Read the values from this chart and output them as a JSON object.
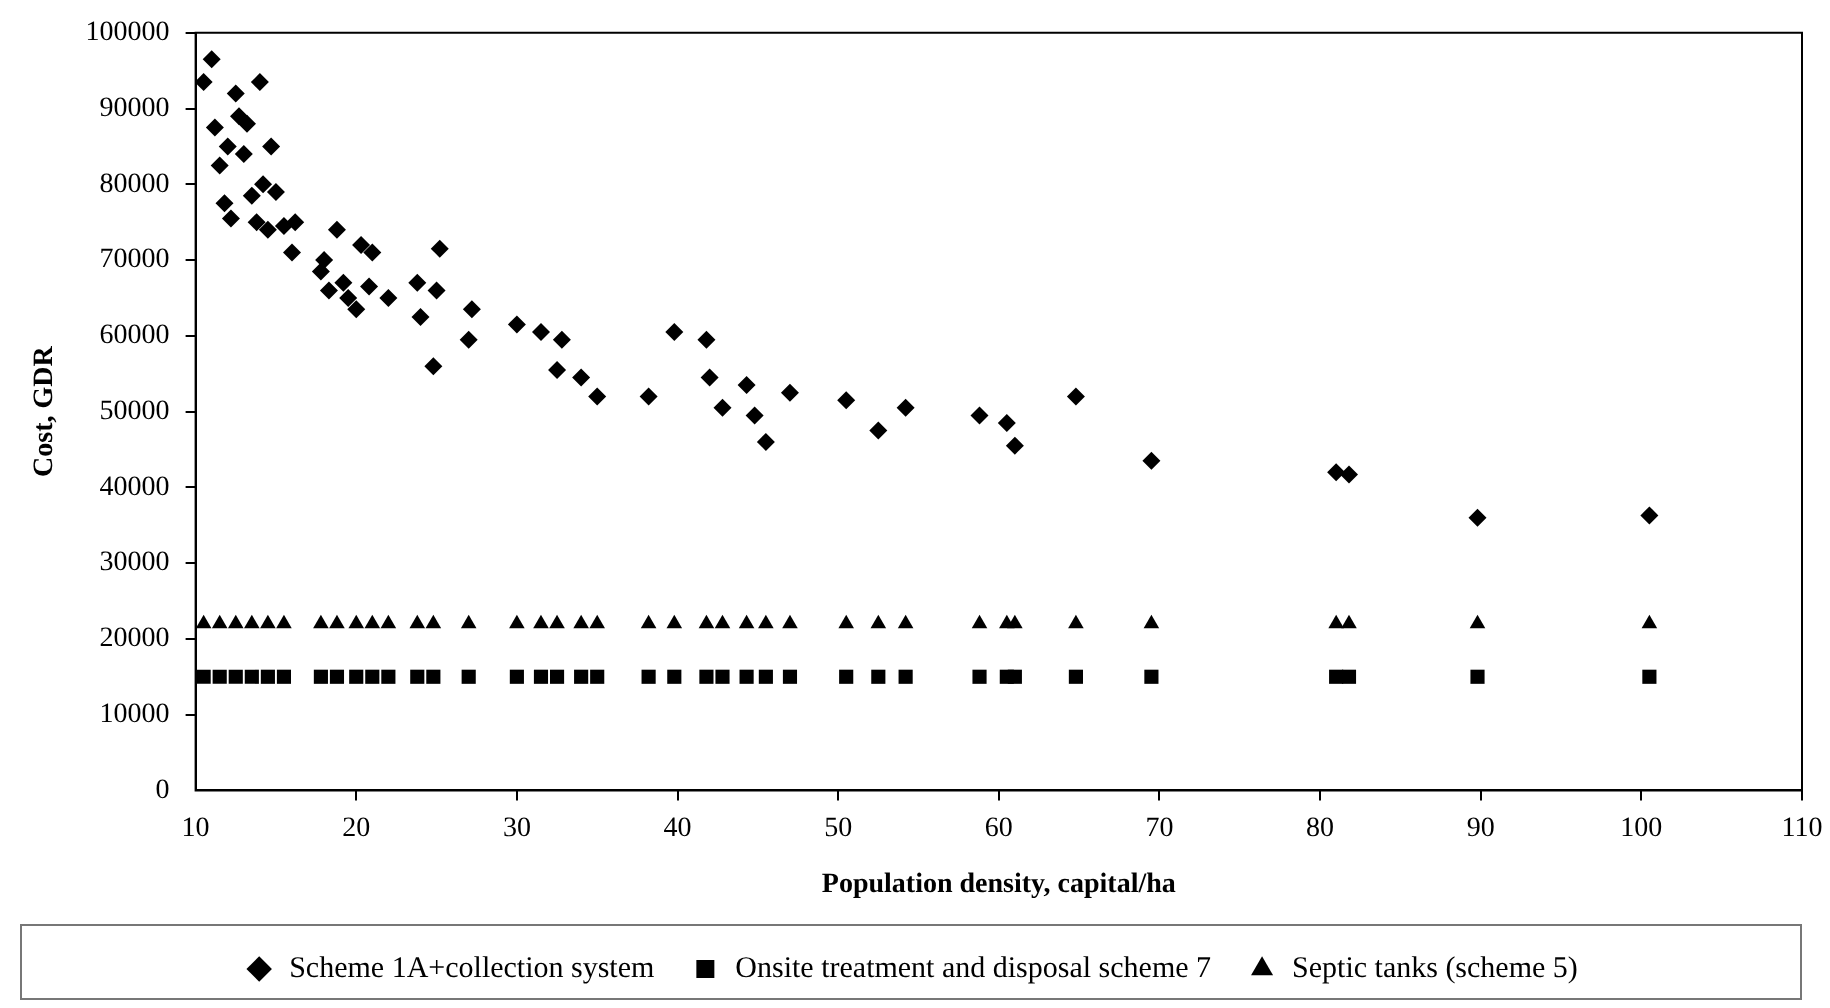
{
  "chart_data": {
    "type": "scatter",
    "xlabel": "Population density, capital/ha",
    "ylabel": "Cost, GDR",
    "series": [
      {
        "name": "Scheme 1A+collection system",
        "color": "#000000",
        "marker": "diamond",
        "x": [
          10.5,
          11,
          11.2,
          11.5,
          11.8,
          12,
          12.2,
          12.5,
          12.7,
          13,
          13.2,
          13.5,
          13.8,
          14,
          14.2,
          14.5,
          14.7,
          15,
          15.5,
          16,
          16.2,
          17.8,
          18,
          18.3,
          18.8,
          19.2,
          19.5,
          20,
          20.3,
          20.8,
          21,
          22,
          23.8,
          24,
          24.8,
          25,
          25.2,
          27,
          27.2,
          30,
          31.5,
          32.5,
          32.8,
          34,
          35,
          38.2,
          39.8,
          41.8,
          42,
          42.8,
          44.3,
          44.8,
          45.5,
          47,
          50.5,
          52.5,
          54.2,
          58.8,
          60.5,
          61,
          64.8,
          69.5,
          81,
          81.8,
          89.8,
          100.5
        ],
        "values": [
          93500,
          96500,
          87500,
          82500,
          77500,
          85000,
          75500,
          92000,
          89000,
          84000,
          88000,
          78500,
          75000,
          93500,
          80000,
          74000,
          85000,
          79000,
          74500,
          71000,
          75000,
          68500,
          70000,
          66000,
          74000,
          67000,
          65000,
          63500,
          72000,
          66500,
          71000,
          65000,
          67000,
          62500,
          56000,
          66000,
          71500,
          59500,
          63500,
          61500,
          60500,
          55500,
          59500,
          54500,
          52000,
          52000,
          60500,
          59500,
          54500,
          50500,
          53500,
          49500,
          46000,
          52500,
          51500,
          47500,
          50500,
          49500,
          48500,
          45500,
          52000,
          43500,
          42000,
          41700,
          36000,
          36300
        ]
      },
      {
        "name": "Onsite treatment and disposal scheme 7",
        "color": "#000000",
        "marker": "square",
        "x": [
          10.5,
          11.5,
          12.5,
          13.5,
          14.5,
          15.5,
          17.8,
          18.8,
          20,
          21,
          22,
          23.8,
          24.8,
          27,
          30,
          31.5,
          32.5,
          34,
          35,
          38.2,
          39.8,
          41.8,
          42.8,
          44.3,
          45.5,
          47,
          50.5,
          52.5,
          54.2,
          58.8,
          60.5,
          61,
          64.8,
          69.5,
          81,
          81.8,
          89.8,
          100.5
        ],
        "values": [
          15000,
          15000,
          15000,
          15000,
          15000,
          15000,
          15000,
          15000,
          15000,
          15000,
          15000,
          15000,
          15000,
          15000,
          15000,
          15000,
          15000,
          15000,
          15000,
          15000,
          15000,
          15000,
          15000,
          15000,
          15000,
          15000,
          15000,
          15000,
          15000,
          15000,
          15000,
          15000,
          15000,
          15000,
          15000,
          15000,
          15000,
          15000
        ]
      },
      {
        "name": "Septic tanks (scheme 5)",
        "color": "#000000",
        "marker": "triangle",
        "x": [
          10.5,
          11.5,
          12.5,
          13.5,
          14.5,
          15.5,
          17.8,
          18.8,
          20,
          21,
          22,
          23.8,
          24.8,
          27,
          30,
          31.5,
          32.5,
          34,
          35,
          38.2,
          39.8,
          41.8,
          42.8,
          44.3,
          45.5,
          47,
          50.5,
          52.5,
          54.2,
          58.8,
          60.5,
          61,
          64.8,
          69.5,
          81,
          81.8,
          89.8,
          100.5
        ],
        "values": [
          22000,
          22000,
          22000,
          22000,
          22000,
          22000,
          22000,
          22000,
          22000,
          22000,
          22000,
          22000,
          22000,
          22000,
          22000,
          22000,
          22000,
          22000,
          22000,
          22000,
          22000,
          22000,
          22000,
          22000,
          22000,
          22000,
          22000,
          22000,
          22000,
          22000,
          22000,
          22000,
          22000,
          22000,
          22000,
          22000,
          22000,
          22000
        ]
      }
    ],
    "xlim": [
      10,
      110
    ],
    "xticks": [
      10,
      20,
      30,
      40,
      50,
      60,
      70,
      80,
      90,
      100,
      110
    ],
    "ylim": [
      0,
      100000
    ],
    "yticks": [
      0,
      10000,
      20000,
      30000,
      40000,
      50000,
      60000,
      70000,
      80000,
      90000,
      100000
    ],
    "grid": false,
    "legend": "bottom"
  }
}
